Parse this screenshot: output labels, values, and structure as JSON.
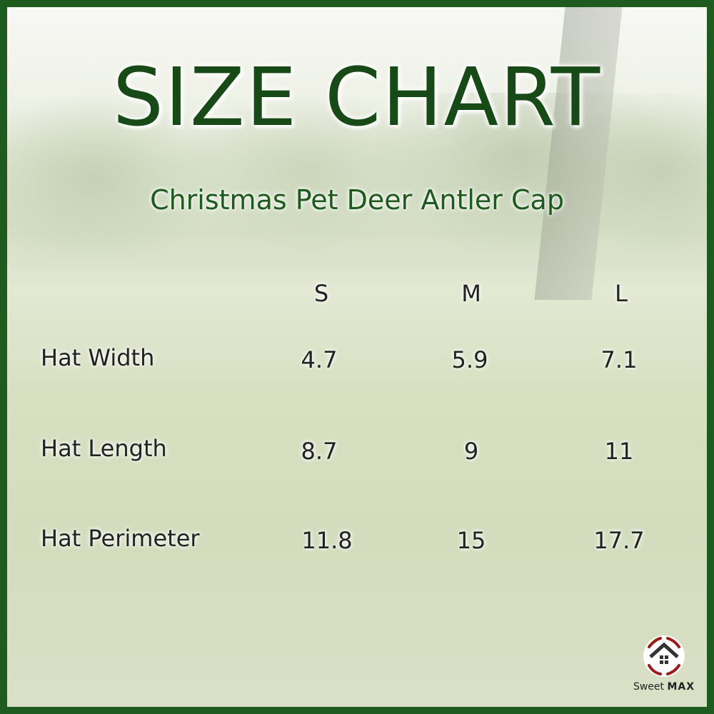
{
  "title": "SIZE CHART",
  "subtitle": "Christmas Pet Deer Antler Cap",
  "table": {
    "columns": [
      "S",
      "M",
      "L"
    ],
    "rows": [
      {
        "label": "Hat Width",
        "values": [
          "4.7",
          "5.9",
          "7.1"
        ]
      },
      {
        "label": "Hat Length",
        "values": [
          "8.7",
          "9",
          "11"
        ]
      },
      {
        "label": "Hat Perimeter",
        "values": [
          "11.8",
          "15",
          "17.7"
        ]
      }
    ]
  },
  "logo": {
    "text_a": "Sweet",
    "text_b": "MAX"
  },
  "colors": {
    "border": "#1e5b1e",
    "title": "#174a17",
    "logo_accent": "#9b1b1b"
  }
}
